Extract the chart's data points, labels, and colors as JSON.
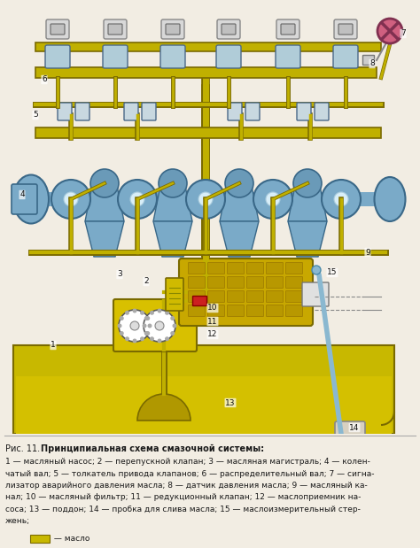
{
  "title_prefix": "Рис. 11.",
  "title_bold": "Принципиальная схема смазочной системы:",
  "caption_lines": [
    "1 — масляный насос; 2 — перепускной клапан; 3 — масляная магистраль; 4 — колен-",
    "чатый вал; 5 — толкатель привода клапанов; 6 — распределительный вал; 7 — сигна-",
    "лизатор аварийного давления масла; 8 — датчик давления масла; 9 — масляный ка-",
    "нал; 10 — масляный фильтр; 11 — редукционный клапан; 12 — маслоприемник на-",
    "соса; 13 — поддон; 14 — пробка для слива масла; 15 — маслоизмерительный стер-",
    "жень;"
  ],
  "legend_color": "#c8b800",
  "legend_text": " — масло",
  "bg_color": "#f2ede3",
  "caption_bg": "#e8e0d0",
  "fig_width": 4.74,
  "fig_height": 6.19,
  "dpi": 100,
  "diagram_bg": "#f8f4ec",
  "oil_color": "#c8b800",
  "blue_color": "#8db8d0",
  "dark_gold": "#7a6a00",
  "pipe_color": "#c0b000",
  "pipe_edge": "#7a6a00",
  "text_color": "#1a1a1a",
  "label_fs": 6.5,
  "caption_fs": 6.5,
  "title_fs": 7.0,
  "white": "#ffffff",
  "gray_shaft": "#b0b8c0",
  "sump_fill": "#c8b800",
  "sump_dark": "#a09000",
  "strainer_color": "#b8a000",
  "filter_color": "#c8a000",
  "filter_mesh": "#9a7800",
  "valve_color": "#e0c800",
  "crank_blue": "#7aaac8",
  "crank_edge": "#3a6888",
  "dipstick_color": "#8ab8d0",
  "sensor_color": "#d06080",
  "sensor_edge": "#803050"
}
